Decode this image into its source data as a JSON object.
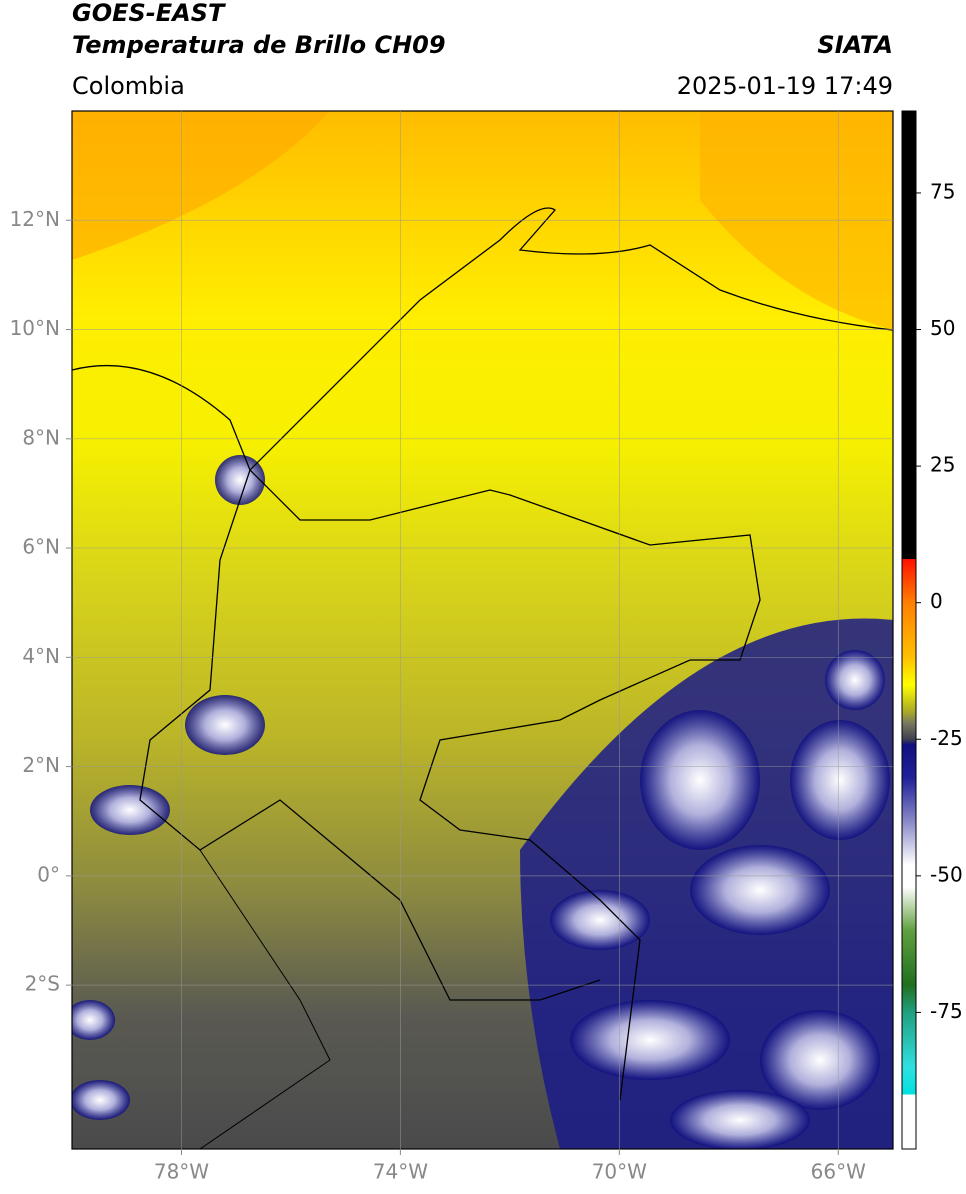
{
  "header": {
    "title": "GOES-EAST",
    "subtitle": "Temperatura de Brillo CH09",
    "source": "SIATA",
    "region": "Colombia",
    "datetime": "2025-01-19 17:49"
  },
  "map": {
    "xlim": [
      -80,
      -65
    ],
    "ylim": [
      -5,
      14
    ],
    "xticks": [
      {
        "value": -78,
        "label": "78°W"
      },
      {
        "value": -74,
        "label": "74°W"
      },
      {
        "value": -70,
        "label": "70°W"
      },
      {
        "value": -66,
        "label": "66°W"
      }
    ],
    "yticks": [
      {
        "value": 12,
        "label": "12°N"
      },
      {
        "value": 10,
        "label": "10°N"
      },
      {
        "value": 8,
        "label": "8°N"
      },
      {
        "value": 6,
        "label": "6°N"
      },
      {
        "value": 4,
        "label": "4°N"
      },
      {
        "value": 2,
        "label": "2°N"
      },
      {
        "value": 0,
        "label": "0°"
      },
      {
        "value": -2,
        "label": "2°S"
      }
    ],
    "grid": true
  },
  "colorbar": {
    "range": [
      -100,
      90
    ],
    "ticks": [
      75,
      50,
      25,
      0,
      -25,
      -50,
      -75
    ],
    "stops": [
      {
        "value": 90,
        "color": "#000000"
      },
      {
        "value": 8,
        "color": "#000000"
      },
      {
        "value": 8,
        "color": "#ff1000"
      },
      {
        "value": 0,
        "color": "#ff8000"
      },
      {
        "value": -10,
        "color": "#ffc000"
      },
      {
        "value": -15,
        "color": "#ffff00"
      },
      {
        "value": -20,
        "color": "#a8a828"
      },
      {
        "value": -22,
        "color": "#7a7a60"
      },
      {
        "value": -25,
        "color": "#404050"
      },
      {
        "value": -26,
        "color": "#101080"
      },
      {
        "value": -32,
        "color": "#20209a"
      },
      {
        "value": -40,
        "color": "#8888c8"
      },
      {
        "value": -48,
        "color": "#ffffff"
      },
      {
        "value": -52,
        "color": "#ffffff"
      },
      {
        "value": -60,
        "color": "#60a040"
      },
      {
        "value": -70,
        "color": "#207020"
      },
      {
        "value": -75,
        "color": "#20a080"
      },
      {
        "value": -85,
        "color": "#30e0e0"
      },
      {
        "value": -90,
        "color": "#00e0e0"
      },
      {
        "value": -90,
        "color": "#ffffff"
      },
      {
        "value": -100,
        "color": "#ffffff"
      }
    ]
  }
}
